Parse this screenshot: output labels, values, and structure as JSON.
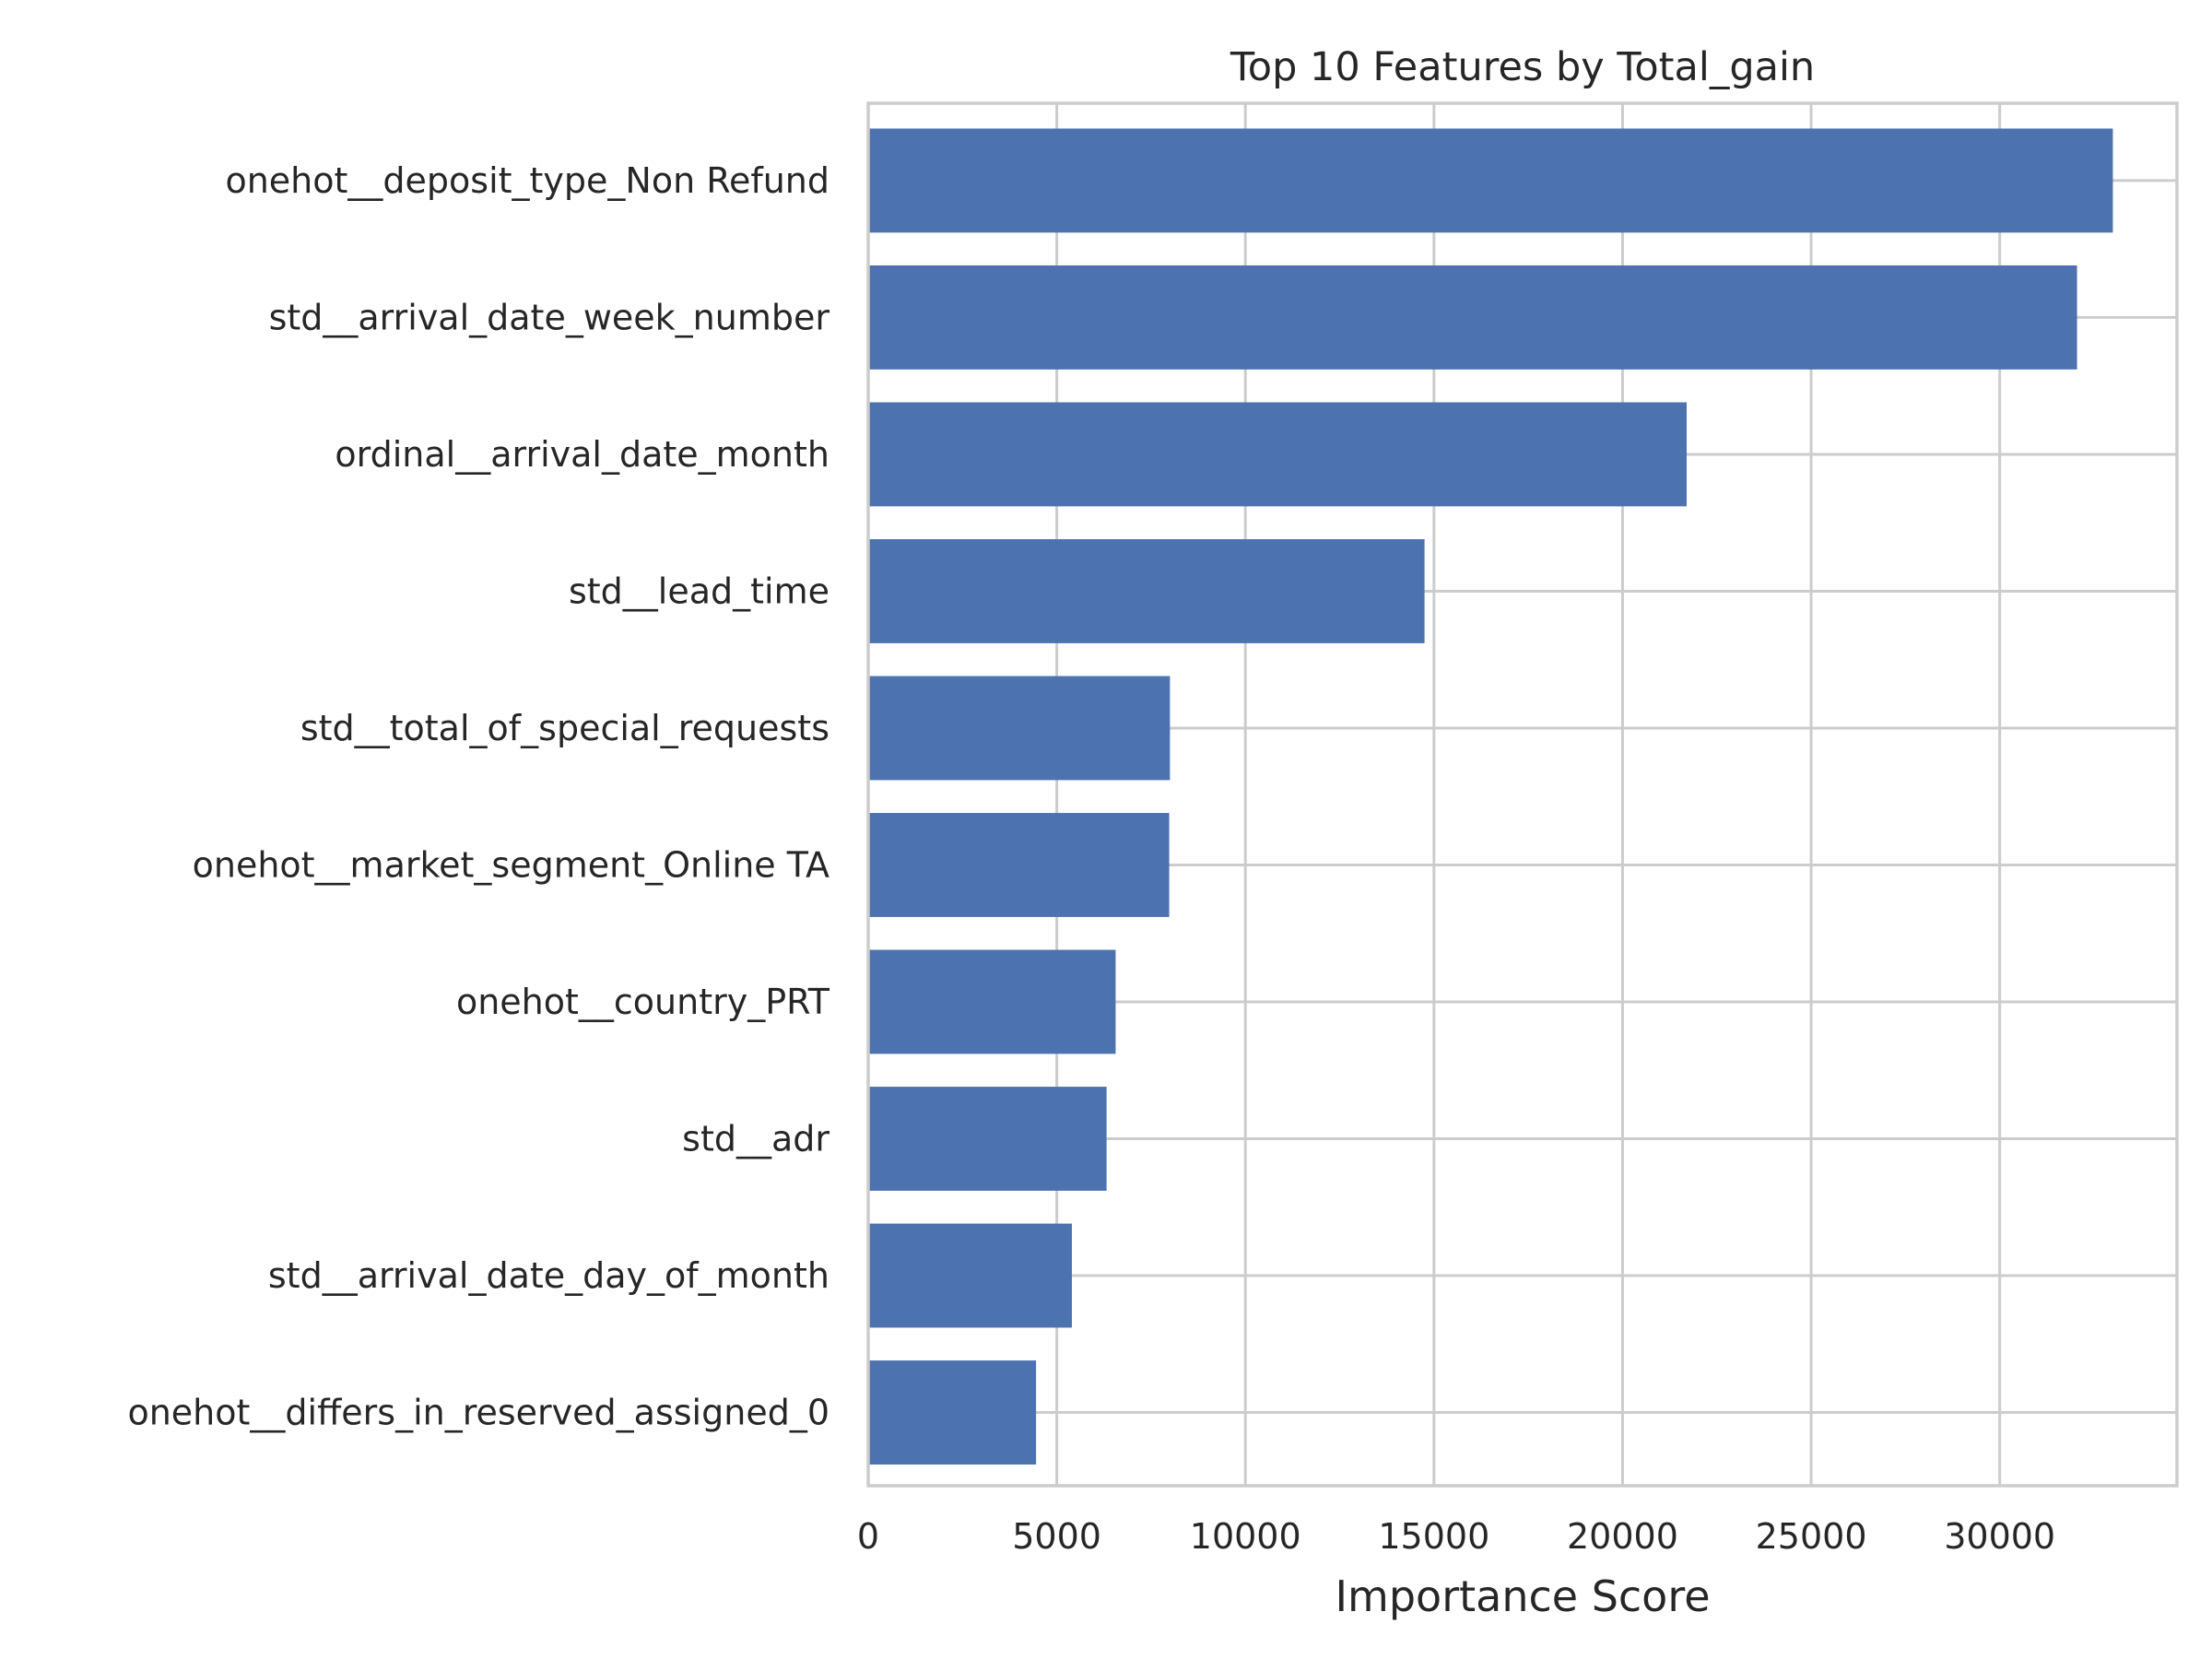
{
  "colors": {
    "bar": "#4c72b0",
    "grid": "#cccccc",
    "text": "#262626",
    "background": "#ffffff"
  },
  "chart_data": {
    "type": "bar",
    "orientation": "horizontal",
    "title": "Top 10 Features by Total_gain",
    "xlabel": "Importance Score",
    "ylabel": "",
    "categories": [
      "onehot__deposit_type_Non Refund",
      "std__arrival_date_week_number",
      "ordinal__arrival_date_month",
      "std__lead_time",
      "std__total_of_special_requests",
      "onehot__market_segment_Online TA",
      "onehot__country_PRT",
      "std__adr",
      "std__arrival_date_day_of_month",
      "onehot__differs_in_reserved_assigned_0"
    ],
    "values": [
      33000,
      32050,
      21700,
      14750,
      8000,
      7980,
      6560,
      6320,
      5400,
      4450
    ],
    "xlim": [
      0,
      34700
    ],
    "xticks": [
      0,
      5000,
      10000,
      15000,
      20000,
      25000,
      30000
    ],
    "xtick_labels": [
      "0",
      "5000",
      "10000",
      "15000",
      "20000",
      "25000",
      "30000"
    ],
    "grid": true,
    "legend": false
  }
}
